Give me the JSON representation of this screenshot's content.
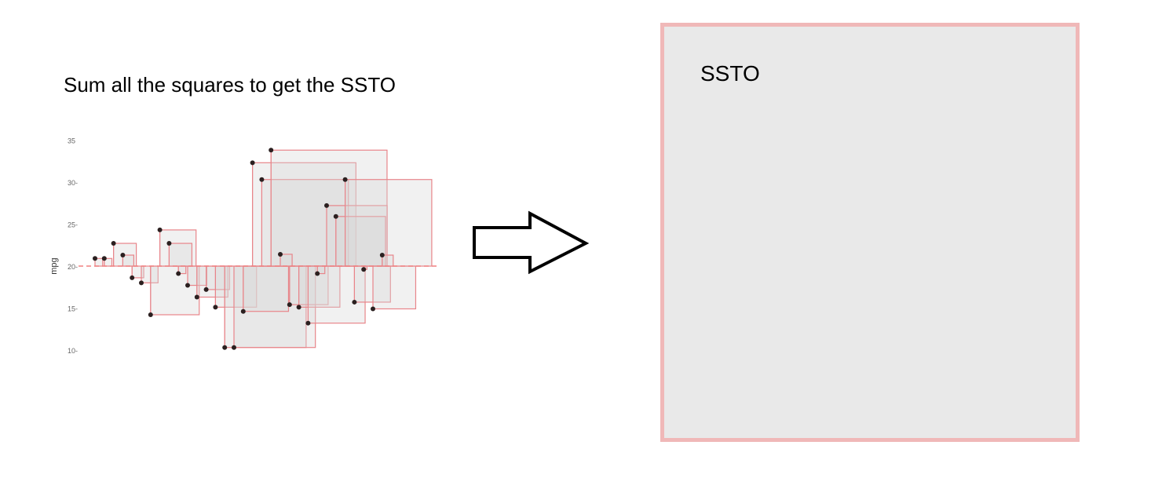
{
  "caption": "Sum all the squares to get the SSTO",
  "total_box": {
    "label": "SSTO"
  },
  "colors": {
    "square_fill": "#d8d8d8",
    "square_stroke": "#e8858a",
    "point": "#2b2020",
    "mean_line": "#f08080",
    "ssto_box_fill": "#e9e9e9",
    "ssto_box_border": "#f0b8b8"
  },
  "chart_data": {
    "type": "scatter",
    "title": "",
    "xlabel": "",
    "ylabel": "mpg",
    "ylim": [
      9,
      36
    ],
    "y_ticks": [
      10,
      15,
      20,
      25,
      30,
      35
    ],
    "y_tick_labels": [
      "10-",
      "15-",
      "20-",
      "25-",
      "30-",
      "35"
    ],
    "mean": 20.09,
    "mean_line_style": "dashed",
    "grid": false,
    "series": [
      {
        "name": "mpg",
        "x": [
          1,
          2,
          3,
          4,
          5,
          6,
          7,
          8,
          9,
          10,
          11,
          12,
          13,
          14,
          15,
          16,
          17,
          18,
          19,
          20,
          21,
          22,
          23,
          24,
          25,
          26,
          27,
          28,
          29,
          30,
          31,
          32
        ],
        "values": [
          21.0,
          21.0,
          22.8,
          21.4,
          18.7,
          18.1,
          14.3,
          24.4,
          22.8,
          19.2,
          17.8,
          16.4,
          17.3,
          15.2,
          10.4,
          10.4,
          14.7,
          32.4,
          30.4,
          33.9,
          21.5,
          15.5,
          15.2,
          13.3,
          19.2,
          27.3,
          26.0,
          30.4,
          15.8,
          19.7,
          15.0,
          21.4
        ]
      }
    ]
  }
}
